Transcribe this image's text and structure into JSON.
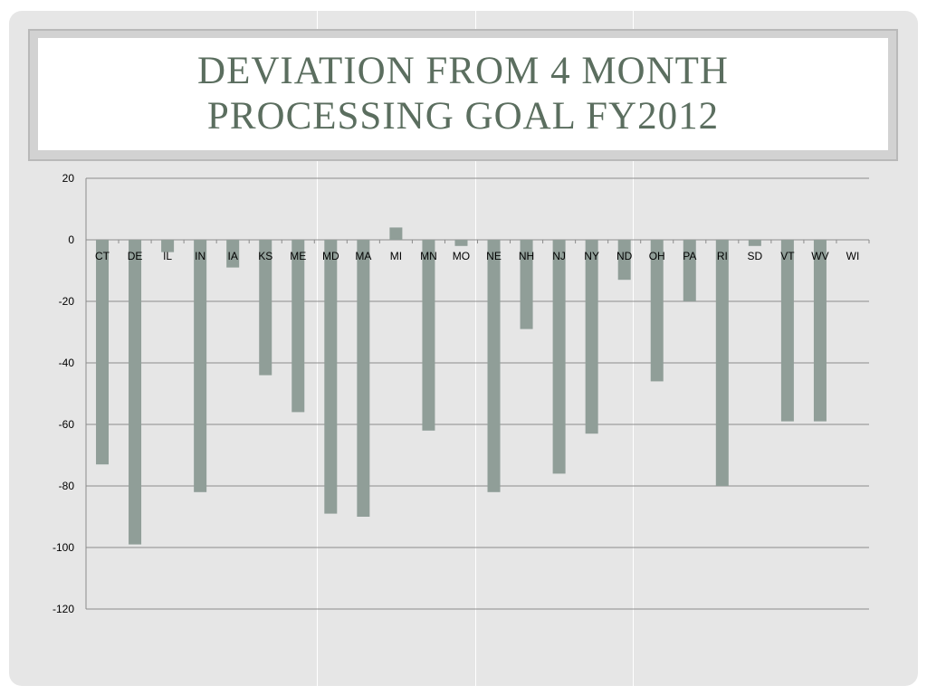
{
  "slide": {
    "title": "DEVIATION FROM 4 MONTH PROCESSING GOAL FY2012"
  },
  "chart_data": {
    "type": "bar",
    "title": "DEVIATION FROM 4 MONTH PROCESSING GOAL FY2012",
    "xlabel": "",
    "ylabel": "",
    "categories": [
      "CT",
      "DE",
      "IL",
      "IN",
      "IA",
      "KS",
      "ME",
      "MD",
      "MA",
      "MI",
      "MN",
      "MO",
      "NE",
      "NH",
      "NJ",
      "NY",
      "ND",
      "OH",
      "PA",
      "RI",
      "SD",
      "VT",
      "WV",
      "WI"
    ],
    "values": [
      -73,
      -99,
      -4,
      -82,
      -9,
      -44,
      -56,
      -89,
      -90,
      4,
      -62,
      -2,
      -82,
      -29,
      -76,
      -63,
      -13,
      -46,
      -20,
      -80,
      -2,
      -59,
      -59,
      0
    ],
    "ylim": [
      -120,
      20
    ],
    "yticks": [
      20,
      0,
      -20,
      -40,
      -60,
      -80,
      -100,
      -120
    ],
    "grid": true,
    "legend": "none",
    "bar_color": "#909e98",
    "grid_color": "#8c8c8c"
  }
}
